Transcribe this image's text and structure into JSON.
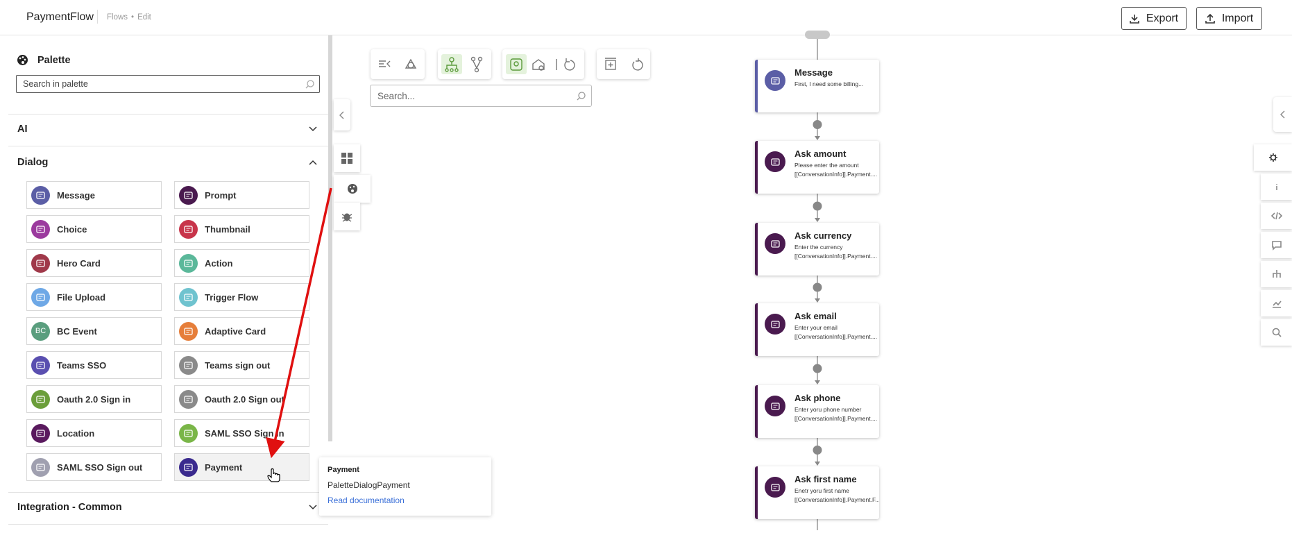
{
  "header": {
    "app_name": "PaymentFlow",
    "breadcrumb": [
      "Flows",
      "Edit"
    ],
    "separator": "•",
    "buttons": [
      "Export",
      "Import"
    ]
  },
  "palette": {
    "title": "Palette",
    "search_placeholder": "Search in palette",
    "sections": [
      {
        "name": "AI"
      },
      {
        "name": "Dialog",
        "items": [
          {
            "label": "Message",
            "color": "#5b5ea6"
          },
          {
            "label": "Prompt",
            "color": "#4a1a4f"
          },
          {
            "label": "Choice",
            "color": "#9b3a9e"
          },
          {
            "label": "Thumbnail",
            "color": "#c8344a"
          },
          {
            "label": "Hero Card",
            "color": "#a0394a"
          },
          {
            "label": "Action",
            "color": "#5bb89a"
          },
          {
            "label": "File Upload",
            "color": "#6ea8e6"
          },
          {
            "label": "Trigger Flow",
            "color": "#6fc3cf"
          },
          {
            "label": "BC Event",
            "color": "#5a9e7e",
            "icon": "BC"
          },
          {
            "label": "Adaptive Card",
            "color": "#e67e3a"
          },
          {
            "label": "Teams SSO",
            "color": "#5a4fb0"
          },
          {
            "label": "Teams sign out",
            "color": "#8a8a8a"
          },
          {
            "label": "Oauth 2.0 Sign in",
            "color": "#6b9e3a"
          },
          {
            "label": "Oauth 2.0 Sign out",
            "color": "#8a8a8a"
          },
          {
            "label": "Location",
            "color": "#5a1a5e"
          },
          {
            "label": "SAML SSO Sign in",
            "color": "#7ab648"
          },
          {
            "label": "SAML SSO Sign out",
            "color": "#a0a0b0"
          },
          {
            "label": "Payment",
            "color": "#3a2a8e"
          }
        ]
      },
      {
        "name": "Integration - Common"
      }
    ]
  },
  "tooltip": {
    "title": "Payment",
    "id": "PaletteDialogPayment",
    "link": "Read documentation"
  },
  "canvas": {
    "search_placeholder": "Search...",
    "nodes": [
      {
        "title": "Message",
        "lines": [
          "First, I need some billing..."
        ],
        "color": "#5b5ea6"
      },
      {
        "title": "Ask amount",
        "lines": [
          "Please enter the amount",
          "[[ConversationInfo]].Payment...."
        ],
        "color": "#4a1a4f"
      },
      {
        "title": "Ask currency",
        "lines": [
          "Enter the currency",
          "[[ConversationInfo]].Payment...."
        ],
        "color": "#4a1a4f"
      },
      {
        "title": "Ask email",
        "lines": [
          "Enter your email",
          "[[ConversationInfo]].Payment...."
        ],
        "color": "#4a1a4f"
      },
      {
        "title": "Ask phone",
        "lines": [
          "Enter yoru phone number",
          "[[ConversationInfo]].Payment...."
        ],
        "color": "#4a1a4f"
      },
      {
        "title": "Ask first name",
        "lines": [
          "Enetr yoru first name",
          "[[ConversationInfo]].Payment.F..."
        ],
        "color": "#4a1a4f"
      }
    ]
  }
}
